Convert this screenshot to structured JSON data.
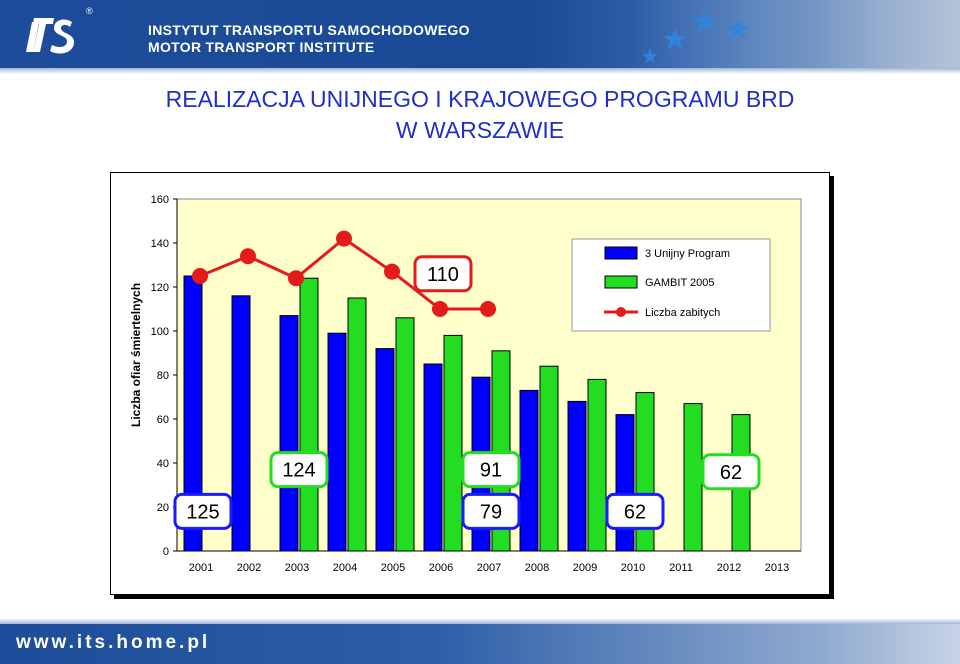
{
  "header": {
    "org_name_pl": "INSTYTUT TRANSPORTU SAMOCHODOWEGO",
    "org_name_en": "MOTOR TRANSPORT INSTITUTE",
    "logo_text": "its",
    "registered_mark": "®",
    "colors": {
      "band": "#1d4d9a",
      "star": "#1e7fd8"
    }
  },
  "title": {
    "line1": "REALIZACJA  UNIJNEGO  I  KRAJOWEGO  PROGRAMU  BRD",
    "line2": "W  WARSZAWIE"
  },
  "chart_data": {
    "type": "bar",
    "title": "",
    "xlabel": "",
    "ylabel": "Liczba ofiar śmiertelnych",
    "ylim": [
      0,
      160
    ],
    "yticks": [
      0,
      20,
      40,
      60,
      80,
      100,
      120,
      140,
      160
    ],
    "categories": [
      "2001",
      "2002",
      "2003",
      "2004",
      "2005",
      "2006",
      "2007",
      "2008",
      "2009",
      "2010",
      "2011",
      "2012",
      "2013"
    ],
    "plot_background": "#ffffcc",
    "legend_position": "top-right",
    "series": [
      {
        "name": "3 Unijny Program",
        "type": "bar",
        "color": "#0000ff",
        "values": [
          125,
          116,
          107,
          99,
          92,
          85,
          79,
          73,
          68,
          62,
          null,
          null,
          null
        ]
      },
      {
        "name": "GAMBIT 2005",
        "type": "bar",
        "color": "#22dd22",
        "values": [
          null,
          null,
          124,
          115,
          106,
          98,
          91,
          84,
          78,
          72,
          67,
          62,
          null
        ]
      },
      {
        "name": "Liczba zabitych",
        "type": "line",
        "color": "#e51a1a",
        "values": [
          125,
          134,
          124,
          142,
          127,
          110,
          110,
          null,
          null,
          null,
          null,
          null,
          null
        ]
      }
    ],
    "callouts": [
      {
        "text": "110",
        "border": "red",
        "at_category": "2006",
        "at_value": 126
      },
      {
        "text": "124",
        "border": "green",
        "at_category": "2003",
        "at_value": 37
      },
      {
        "text": "91",
        "border": "green",
        "at_category": "2007",
        "at_value": 37
      },
      {
        "text": "62",
        "border": "green",
        "at_category": "2012",
        "at_value": 36
      },
      {
        "text": "125",
        "border": "blue",
        "at_category": "2001",
        "at_value": 18
      },
      {
        "text": "79",
        "border": "blue",
        "at_category": "2007",
        "at_value": 18
      },
      {
        "text": "62",
        "border": "blue",
        "at_category": "2010",
        "at_value": 18
      }
    ]
  },
  "footer": {
    "url": "www.its.home.pl",
    "colors": {
      "band": "#1d4d9a"
    }
  }
}
